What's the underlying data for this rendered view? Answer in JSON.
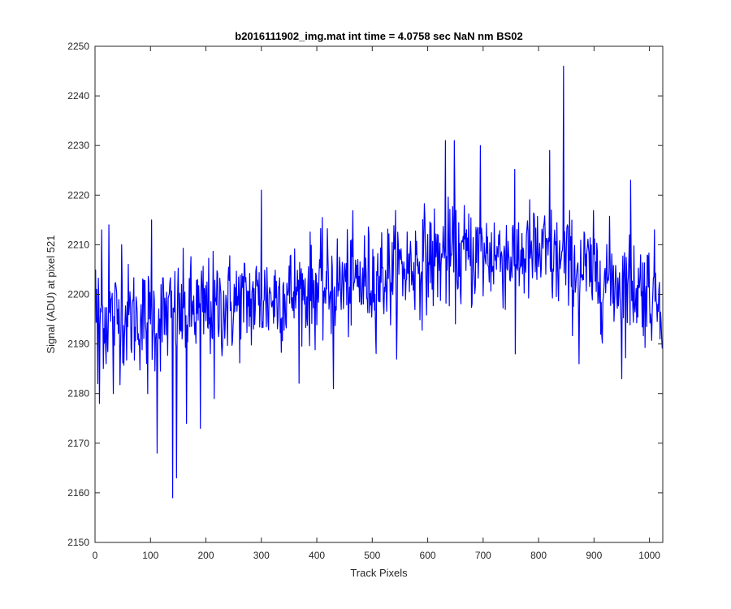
{
  "chart_data": {
    "type": "line",
    "title": "b2016111902_img.mat int time = 4.0758 sec  NaN nm BS02",
    "xlabel": "Track Pixels",
    "ylabel": "Signal (ADU) at pixel 521",
    "xlim": [
      0,
      1024
    ],
    "ylim": [
      2150,
      2250
    ],
    "xticks": [
      0,
      100,
      200,
      300,
      400,
      500,
      600,
      700,
      800,
      900,
      1000
    ],
    "yticks": [
      2150,
      2160,
      2170,
      2180,
      2190,
      2200,
      2210,
      2220,
      2230,
      2240,
      2250
    ],
    "grid": false,
    "box": true,
    "series": [
      {
        "color": "#0000ff",
        "noise_amplitude": 7,
        "trend_points": [
          [
            1,
            2196
          ],
          [
            100,
            2195
          ],
          [
            200,
            2197
          ],
          [
            300,
            2199
          ],
          [
            400,
            2201
          ],
          [
            500,
            2203
          ],
          [
            600,
            2207
          ],
          [
            700,
            2208
          ],
          [
            800,
            2208
          ],
          [
            900,
            2204
          ],
          [
            1024,
            2200
          ]
        ],
        "notable_points": [
          [
            1,
            2205
          ],
          [
            5,
            2182
          ],
          [
            8,
            2178
          ],
          [
            12,
            2213
          ],
          [
            20,
            2186
          ],
          [
            25,
            2214
          ],
          [
            33,
            2180
          ],
          [
            48,
            2210
          ],
          [
            95,
            2180
          ],
          [
            102,
            2215
          ],
          [
            112,
            2168
          ],
          [
            140,
            2159
          ],
          [
            147,
            2163
          ],
          [
            165,
            2174
          ],
          [
            190,
            2173
          ],
          [
            215,
            2179
          ],
          [
            300,
            2221
          ],
          [
            430,
            2181
          ],
          [
            632,
            2231
          ],
          [
            648,
            2231
          ],
          [
            695,
            2230
          ],
          [
            758,
            2188
          ],
          [
            820,
            2229
          ],
          [
            845,
            2246
          ],
          [
            873,
            2186
          ],
          [
            950,
            2183
          ],
          [
            966,
            2223
          ],
          [
            1024,
            2190
          ]
        ]
      }
    ]
  }
}
